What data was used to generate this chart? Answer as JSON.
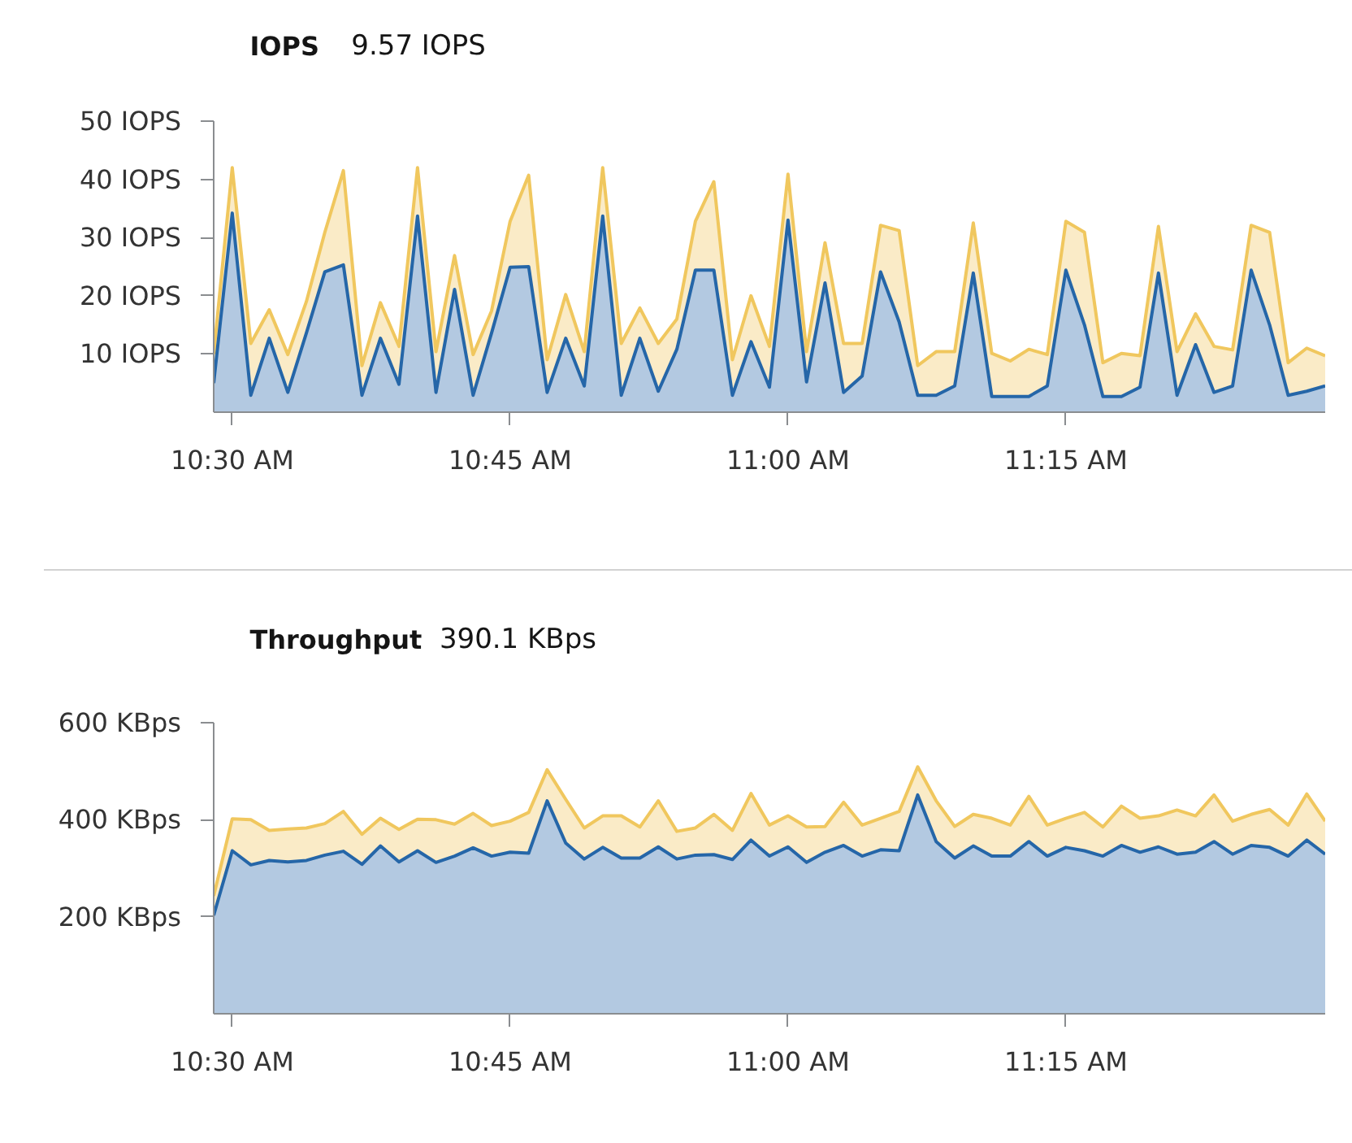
{
  "chart_data": [
    {
      "type": "area",
      "title": "IOPS",
      "subtitle": "9.57 IOPS",
      "x": [
        10.4833,
        10.5,
        10.5167,
        10.5333,
        10.55,
        10.5667,
        10.5833,
        10.6,
        10.6167,
        10.6333,
        10.65,
        10.6667,
        10.6833,
        10.7,
        10.7167,
        10.7333,
        10.75,
        10.7667,
        10.7833,
        10.8,
        10.8167,
        10.8333,
        10.85,
        10.8667,
        10.8833,
        10.9,
        10.9167,
        10.9333,
        10.95,
        10.9667,
        10.9833,
        11.0,
        11.0167,
        11.0333,
        11.05,
        11.0667,
        11.0833,
        11.1,
        11.1167,
        11.1333,
        11.15,
        11.1667,
        11.1833,
        11.2,
        11.2167,
        11.2333,
        11.25,
        11.2667,
        11.2833,
        11.3,
        11.3167,
        11.3333,
        11.35,
        11.3667,
        11.3833,
        11.4,
        11.4167,
        11.4333,
        11.45,
        11.4667,
        11.4833
      ],
      "series": [
        {
          "color": "#f0c75e",
          "values": [
            10,
            42,
            11.8,
            17.6,
            9.9,
            19,
            30.9,
            41.5,
            8,
            18.8,
            11.3,
            42,
            10.4,
            26.9,
            9.9,
            17.4,
            32.8,
            40.7,
            9,
            20.2,
            10.4,
            42,
            11.8,
            17.9,
            11.8,
            16,
            32.8,
            39.6,
            9,
            20,
            11.3,
            40.9,
            10.4,
            29.1,
            11.8,
            11.8,
            32.1,
            31.2,
            8,
            10.4,
            10.4,
            32.5,
            10.1,
            8.8,
            10.8,
            9.9,
            32.8,
            30.9,
            8.5,
            10.1,
            9.7,
            31.9,
            10.4,
            16.9,
            11.3,
            10.7,
            32.1,
            30.9,
            8.5,
            11,
            9.7
          ]
        },
        {
          "color": "#2566a8",
          "values": [
            5,
            34.2,
            2.9,
            12.7,
            3.4,
            13.6,
            24.1,
            25.3,
            2.9,
            12.7,
            4.8,
            33.7,
            3.4,
            21.1,
            2.9,
            13.6,
            24.9,
            25,
            3.4,
            12.7,
            4.5,
            33.7,
            2.9,
            12.7,
            3.6,
            10.8,
            24.4,
            24.4,
            2.9,
            12.1,
            4.3,
            33,
            5.2,
            22.2,
            3.4,
            6.2,
            24.1,
            15.5,
            2.9,
            2.9,
            4.5,
            23.9,
            2.7,
            2.7,
            2.7,
            4.5,
            24.4,
            15,
            2.7,
            2.7,
            4.3,
            23.9,
            2.9,
            11.6,
            3.4,
            4.5,
            24.4,
            15,
            2.9,
            3.6,
            4.5
          ]
        }
      ],
      "xlim": [
        10.4833,
        11.4833
      ],
      "xticks": [
        {
          "value": 10.5,
          "label": "10:30 AM"
        },
        {
          "value": 10.75,
          "label": "10:45 AM"
        },
        {
          "value": 11.0,
          "label": "11:00 AM"
        },
        {
          "value": 11.25,
          "label": "11:15 AM"
        }
      ],
      "ylim": [
        0,
        50
      ],
      "yticks": [
        {
          "value": 10,
          "label": "10 IOPS"
        },
        {
          "value": 20,
          "label": "20 IOPS"
        },
        {
          "value": 30,
          "label": "30 IOPS"
        },
        {
          "value": 40,
          "label": "40 IOPS"
        },
        {
          "value": 50,
          "label": "50 IOPS"
        }
      ]
    },
    {
      "type": "area",
      "title": "Throughput",
      "subtitle": "390.1 KBps",
      "x": [
        10.4833,
        10.5,
        10.5167,
        10.5333,
        10.55,
        10.5667,
        10.5833,
        10.6,
        10.6167,
        10.6333,
        10.65,
        10.6667,
        10.6833,
        10.7,
        10.7167,
        10.7333,
        10.75,
        10.7667,
        10.7833,
        10.8,
        10.8167,
        10.8333,
        10.85,
        10.8667,
        10.8833,
        10.9,
        10.9167,
        10.9333,
        10.95,
        10.9667,
        10.9833,
        11.0,
        11.0167,
        11.0333,
        11.05,
        11.0667,
        11.0833,
        11.1,
        11.1167,
        11.1333,
        11.15,
        11.1667,
        11.1833,
        11.2,
        11.2167,
        11.2333,
        11.25,
        11.2667,
        11.2833,
        11.3,
        11.3167,
        11.3333,
        11.35,
        11.3667,
        11.3833,
        11.4,
        11.4167,
        11.4333,
        11.45,
        11.4667,
        11.4833
      ],
      "series": [
        {
          "color": "#f0c75e",
          "values": [
            243,
            402,
            400,
            378,
            381,
            383,
            392,
            417,
            370,
            403,
            380,
            401,
            400,
            391,
            413,
            388,
            397,
            415,
            503,
            442,
            383,
            408,
            408,
            385,
            439,
            376,
            383,
            411,
            378,
            454,
            389,
            408,
            385,
            386,
            436,
            389,
            403,
            417,
            509,
            439,
            386,
            411,
            403,
            389,
            448,
            389,
            403,
            415,
            385,
            428,
            403,
            408,
            420,
            408,
            451,
            397,
            411,
            421,
            389,
            453,
            397
          ]
        },
        {
          "color": "#2566a8",
          "values": [
            203,
            336,
            307,
            316,
            313,
            316,
            327,
            335,
            308,
            346,
            313,
            336,
            312,
            325,
            342,
            325,
            333,
            331,
            439,
            352,
            319,
            343,
            321,
            321,
            344,
            319,
            327,
            328,
            318,
            358,
            325,
            344,
            312,
            333,
            347,
            325,
            338,
            336,
            451,
            355,
            321,
            346,
            325,
            325,
            355,
            325,
            343,
            336,
            325,
            347,
            333,
            344,
            329,
            333,
            355,
            329,
            347,
            343,
            325,
            358,
            329
          ]
        }
      ],
      "xlim": [
        10.4833,
        11.4833
      ],
      "xticks": [
        {
          "value": 10.5,
          "label": "10:30 AM"
        },
        {
          "value": 10.75,
          "label": "10:45 AM"
        },
        {
          "value": 11.0,
          "label": "11:00 AM"
        },
        {
          "value": 11.25,
          "label": "11:15 AM"
        }
      ],
      "ylim": [
        0,
        600
      ],
      "yticks": [
        {
          "value": 200,
          "label": "200 KBps"
        },
        {
          "value": 400,
          "label": "400 KBps"
        },
        {
          "value": 600,
          "label": "600 KBps"
        }
      ]
    }
  ]
}
